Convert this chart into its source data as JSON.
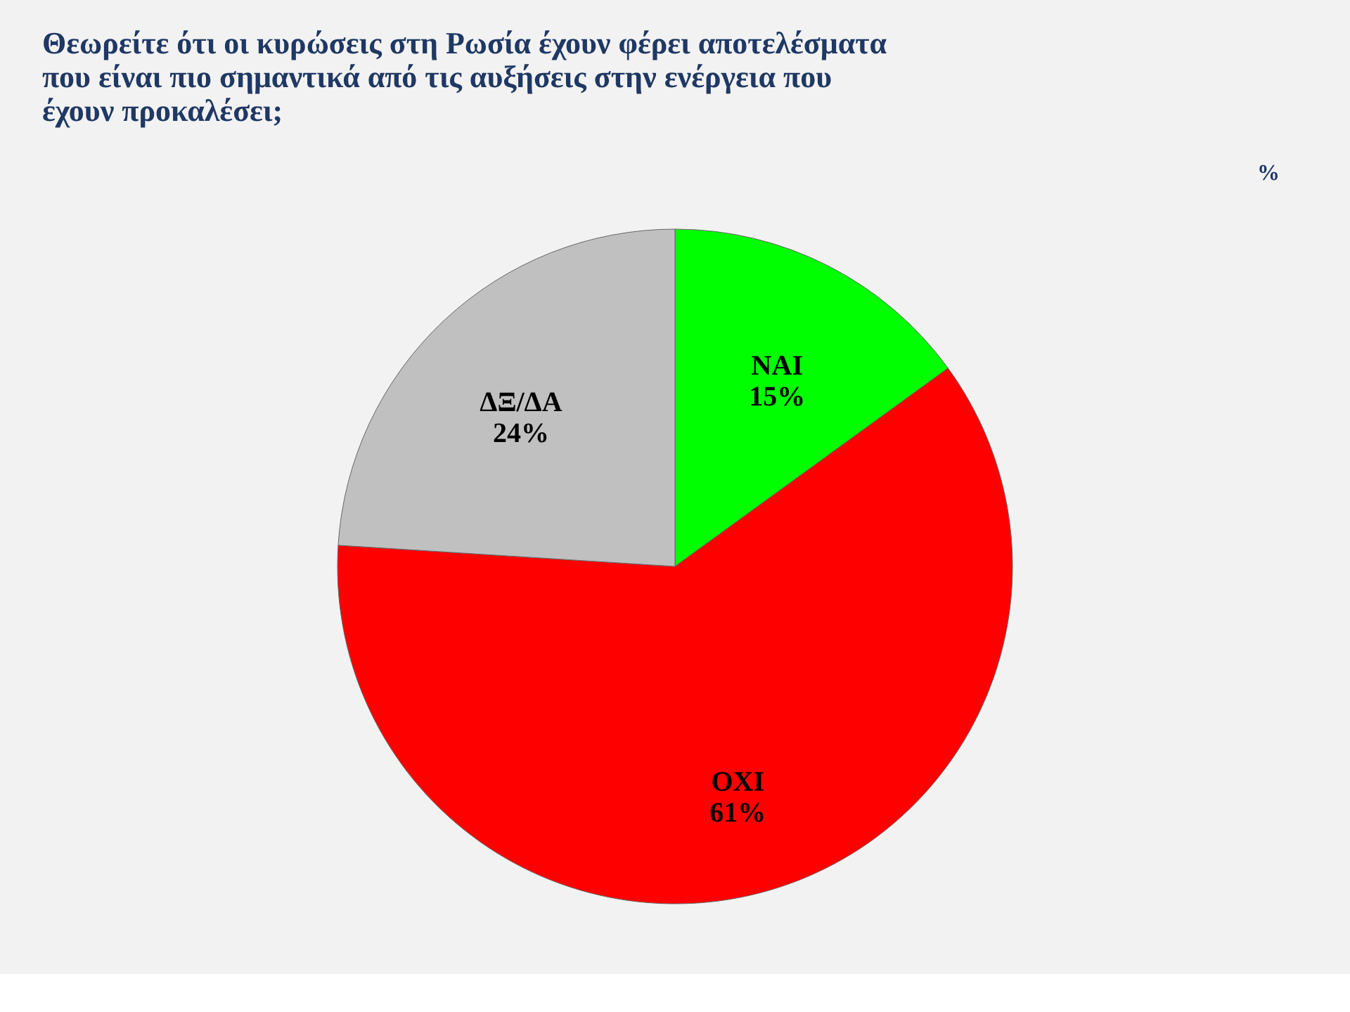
{
  "chart_data": {
    "type": "pie",
    "title": "Θεωρείτε ότι οι κυρώσεις στη Ρωσία έχουν φέρει αποτελέσματα που είναι πιο σημαντικά από τις αυξήσεις στην ενέργεια που έχουν προκαλέσει;",
    "categories": [
      "ΝΑΙ",
      "ΟΧΙ",
      "ΔΞ/ΔΑ"
    ],
    "values": [
      15,
      61,
      24
    ],
    "colors": [
      "#00ff00",
      "#ff0000",
      "#c0c0c0"
    ],
    "value_labels": [
      "15%",
      "61%",
      "24%"
    ],
    "annotations": [
      "%"
    ]
  }
}
